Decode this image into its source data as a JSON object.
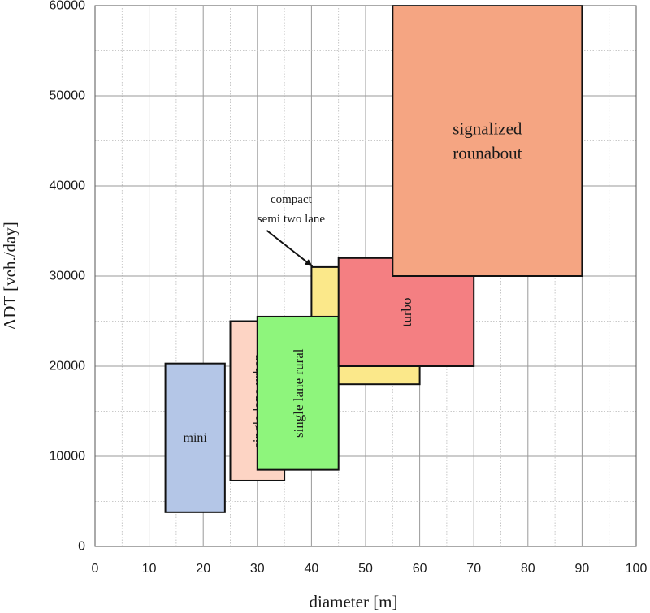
{
  "chart_data": {
    "type": "range-rectangles",
    "xlabel": "diameter [m]",
    "ylabel": "ADT [veh./day]",
    "xlim": [
      0,
      100
    ],
    "ylim": [
      0,
      60000
    ],
    "xticks": [
      "0",
      "10",
      "20",
      "30",
      "40",
      "50",
      "60",
      "70",
      "80",
      "90",
      "100"
    ],
    "yticks": [
      "0",
      "10000",
      "20000",
      "30000",
      "40000",
      "50000",
      "60000"
    ],
    "grid": true,
    "regions": [
      {
        "name": "mini",
        "label": [
          "mini"
        ],
        "x": [
          13,
          24
        ],
        "y": [
          3800,
          20300
        ],
        "color": "#b4c6e7",
        "label_rotation": 0
      },
      {
        "name": "compact semi two lane",
        "label": [],
        "x": [
          40,
          60
        ],
        "y": [
          18000,
          31000
        ],
        "color": "#fbe88a",
        "label_rotation": 0
      },
      {
        "name": "single lane urban",
        "label": [
          "single lane urban"
        ],
        "x": [
          25,
          35
        ],
        "y": [
          7300,
          25000
        ],
        "color": "#fdd4c4",
        "label_rotation": -90
      },
      {
        "name": "single lane rural",
        "label": [
          "single lane rural"
        ],
        "x": [
          30,
          45
        ],
        "y": [
          8500,
          25500
        ],
        "color": "#8ef57c",
        "label_rotation": -90
      },
      {
        "name": "turbo",
        "label": [
          "turbo"
        ],
        "x": [
          45,
          70
        ],
        "y": [
          20000,
          32000
        ],
        "color": "#f47f82",
        "label_rotation": -90
      },
      {
        "name": "signalized rounabout",
        "label": [
          "signalized",
          "rounabout"
        ],
        "x": [
          55,
          90
        ],
        "y": [
          30000,
          60000
        ],
        "color": "#f5a582",
        "label_rotation": 0
      }
    ],
    "annotations": [
      {
        "text": [
          "compact",
          "semi two lane"
        ],
        "points_to": "compact semi two lane",
        "x": 40,
        "y": 31000
      }
    ]
  }
}
